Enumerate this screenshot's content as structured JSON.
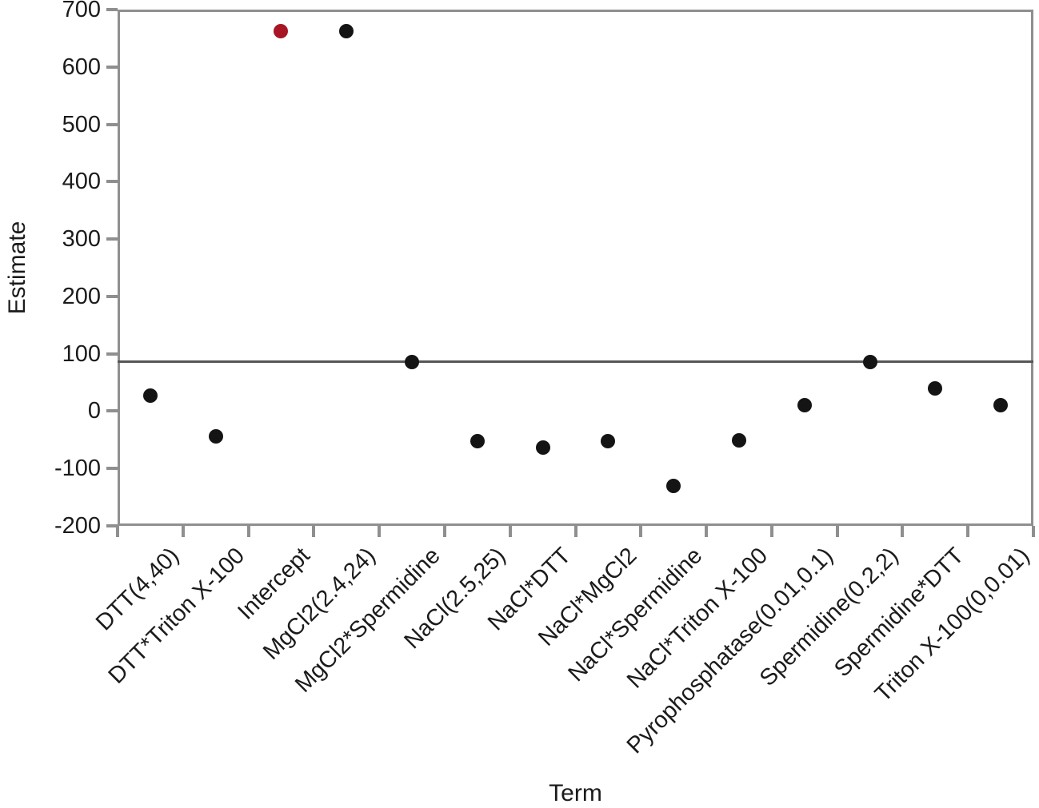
{
  "chart_data": {
    "type": "scatter",
    "title": "",
    "xlabel": "Term",
    "ylabel": "Estimate",
    "ylim": [
      -200,
      700
    ],
    "yticks": [
      700,
      600,
      500,
      400,
      300,
      200,
      100,
      0,
      -100,
      -200
    ],
    "grid": false,
    "legend_position": "none",
    "reference_line": {
      "value": 86
    },
    "categories": [
      "DTT(4,40)",
      "DTT*Triton X-100",
      "Intercept",
      "MgCl2(2.4,24)",
      "MgCl2*Spermidine",
      "NaCl(2.5,25)",
      "NaCl*DTT",
      "NaCl*MgCl2",
      "NaCl*Spermidine",
      "NaCl*Triton X-100",
      "Pyrophosphatase(0.01,0.1)",
      "Spermidine(0.2,2)",
      "Spermidine*DTT",
      "Triton X-100(0,0.01)"
    ],
    "points": [
      {
        "term": "DTT(4,40)",
        "estimate": 27,
        "highlighted": false
      },
      {
        "term": "DTT*Triton X-100",
        "estimate": -44,
        "highlighted": false
      },
      {
        "term": "Intercept",
        "estimate": 663,
        "highlighted": true
      },
      {
        "term": "MgCl2(2.4,24)",
        "estimate": 663,
        "highlighted": false
      },
      {
        "term": "MgCl2*Spermidine",
        "estimate": 86,
        "highlighted": false
      },
      {
        "term": "NaCl(2.5,25)",
        "estimate": -53,
        "highlighted": false
      },
      {
        "term": "NaCl*DTT",
        "estimate": -64,
        "highlighted": false
      },
      {
        "term": "NaCl*MgCl2",
        "estimate": -53,
        "highlighted": false
      },
      {
        "term": "NaCl*Spermidine",
        "estimate": -131,
        "highlighted": false
      },
      {
        "term": "NaCl*Triton X-100",
        "estimate": -51,
        "highlighted": false
      },
      {
        "term": "Pyrophosphatase(0.01,0.1)",
        "estimate": 11,
        "highlighted": false
      },
      {
        "term": "Spermidine(0.2,2)",
        "estimate": 86,
        "highlighted": false
      },
      {
        "term": "Spermidine*DTT",
        "estimate": 40,
        "highlighted": false
      },
      {
        "term": "Triton X-100(0,0.01)",
        "estimate": 10,
        "highlighted": false
      }
    ]
  },
  "colors": {
    "point": "#141414",
    "highlighted_point": "#a81524",
    "axis": "#8f8f8f",
    "reference_line": "#565656",
    "text": "#1b1b1b",
    "background": "#ffffff"
  }
}
